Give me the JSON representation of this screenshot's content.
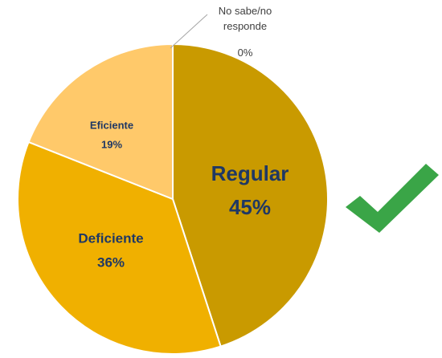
{
  "chart_data": {
    "type": "pie",
    "categories": [
      "Regular",
      "Deficiente",
      "Eficiente",
      "No sabe/no responde"
    ],
    "values": [
      45,
      36,
      19,
      0
    ],
    "value_labels": [
      "45%",
      "36%",
      "19%",
      "0%"
    ],
    "colors": [
      "#c99a00",
      "#f0b000",
      "#ffc96a",
      "#ffe2a8"
    ]
  }
}
